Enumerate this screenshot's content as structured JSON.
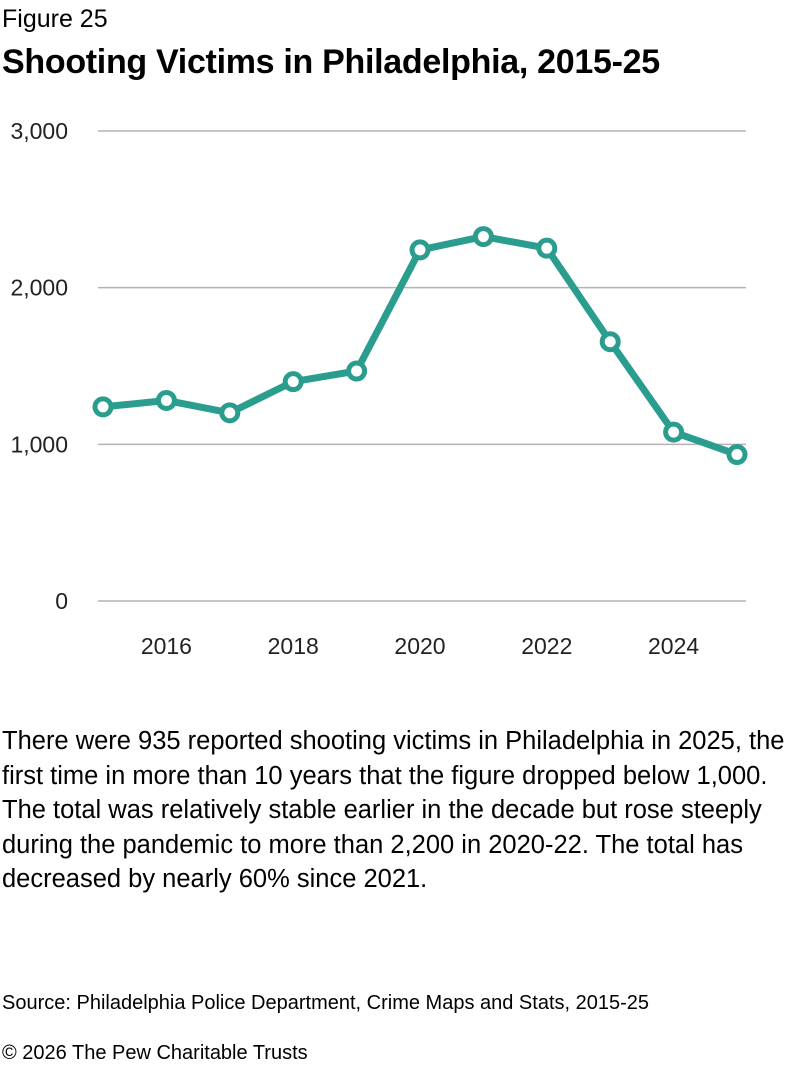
{
  "figure_label": "Figure 25",
  "title": "Shooting Victims in Philadelphia, 2015-25",
  "description": "There were 935 reported shooting victims in Philadelphia in 2025, the first time in more than 10 years that the figure dropped below 1,000. The total was relatively stable earlier in the decade but rose steeply during the pandemic to more than 2,200 in 2020-22. The total has decreased by nearly 60% since 2021.",
  "source": "Source: Philadelphia Police Department, Crime Maps and Stats, 2015-25",
  "copyright": "© 2026 The Pew Charitable Trusts",
  "colors": {
    "line": "#2a9d8f",
    "grid": "#b3b3b3",
    "marker_fill": "#ffffff"
  },
  "chart_data": {
    "type": "line",
    "title": "Shooting Victims in Philadelphia, 2015-25",
    "xlabel": "",
    "ylabel": "",
    "x": [
      2015,
      2016,
      2017,
      2018,
      2019,
      2020,
      2021,
      2022,
      2023,
      2024,
      2025
    ],
    "series": [
      {
        "name": "Shooting victims",
        "values": [
          1239,
          1280,
          1201,
          1400,
          1468,
          2241,
          2326,
          2252,
          1655,
          1078,
          935
        ]
      }
    ],
    "xlim": [
      2015,
      2025
    ],
    "ylim": [
      0,
      3000
    ],
    "x_ticks": [
      2016,
      2018,
      2020,
      2022,
      2024
    ],
    "x_tick_labels": [
      "2016",
      "2018",
      "2020",
      "2022",
      "2024"
    ],
    "y_ticks": [
      0,
      1000,
      2000,
      3000
    ],
    "y_tick_labels": [
      "0",
      "1,000",
      "2,000",
      "3,000"
    ],
    "grid": true,
    "legend": "none"
  }
}
